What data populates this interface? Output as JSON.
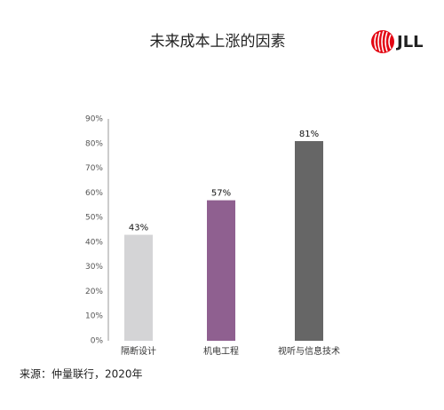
{
  "chart_data": {
    "type": "bar",
    "title": "未来成本上涨的因素",
    "logo": "JLL",
    "source": "来源：仲量联行，2020年",
    "categories": [
      "隔断设计",
      "机电工程",
      "视听与信息技术"
    ],
    "values": [
      43,
      57,
      81
    ],
    "value_labels": [
      "43%",
      "57%",
      "81%"
    ],
    "colors": [
      "#d4d4d6",
      "#8f6090",
      "#666666"
    ],
    "ylim": [
      0,
      90
    ],
    "yticks": [
      {
        "value": 0,
        "label": "0%"
      },
      {
        "value": 10,
        "label": "10%"
      },
      {
        "value": 20,
        "label": "20%"
      },
      {
        "value": 30,
        "label": "30%"
      },
      {
        "value": 40,
        "label": "40%"
      },
      {
        "value": 50,
        "label": "50%"
      },
      {
        "value": 60,
        "label": "60%"
      },
      {
        "value": 70,
        "label": "70%"
      },
      {
        "value": 80,
        "label": "80%"
      },
      {
        "value": 90,
        "label": "90%"
      }
    ],
    "grid": false
  }
}
